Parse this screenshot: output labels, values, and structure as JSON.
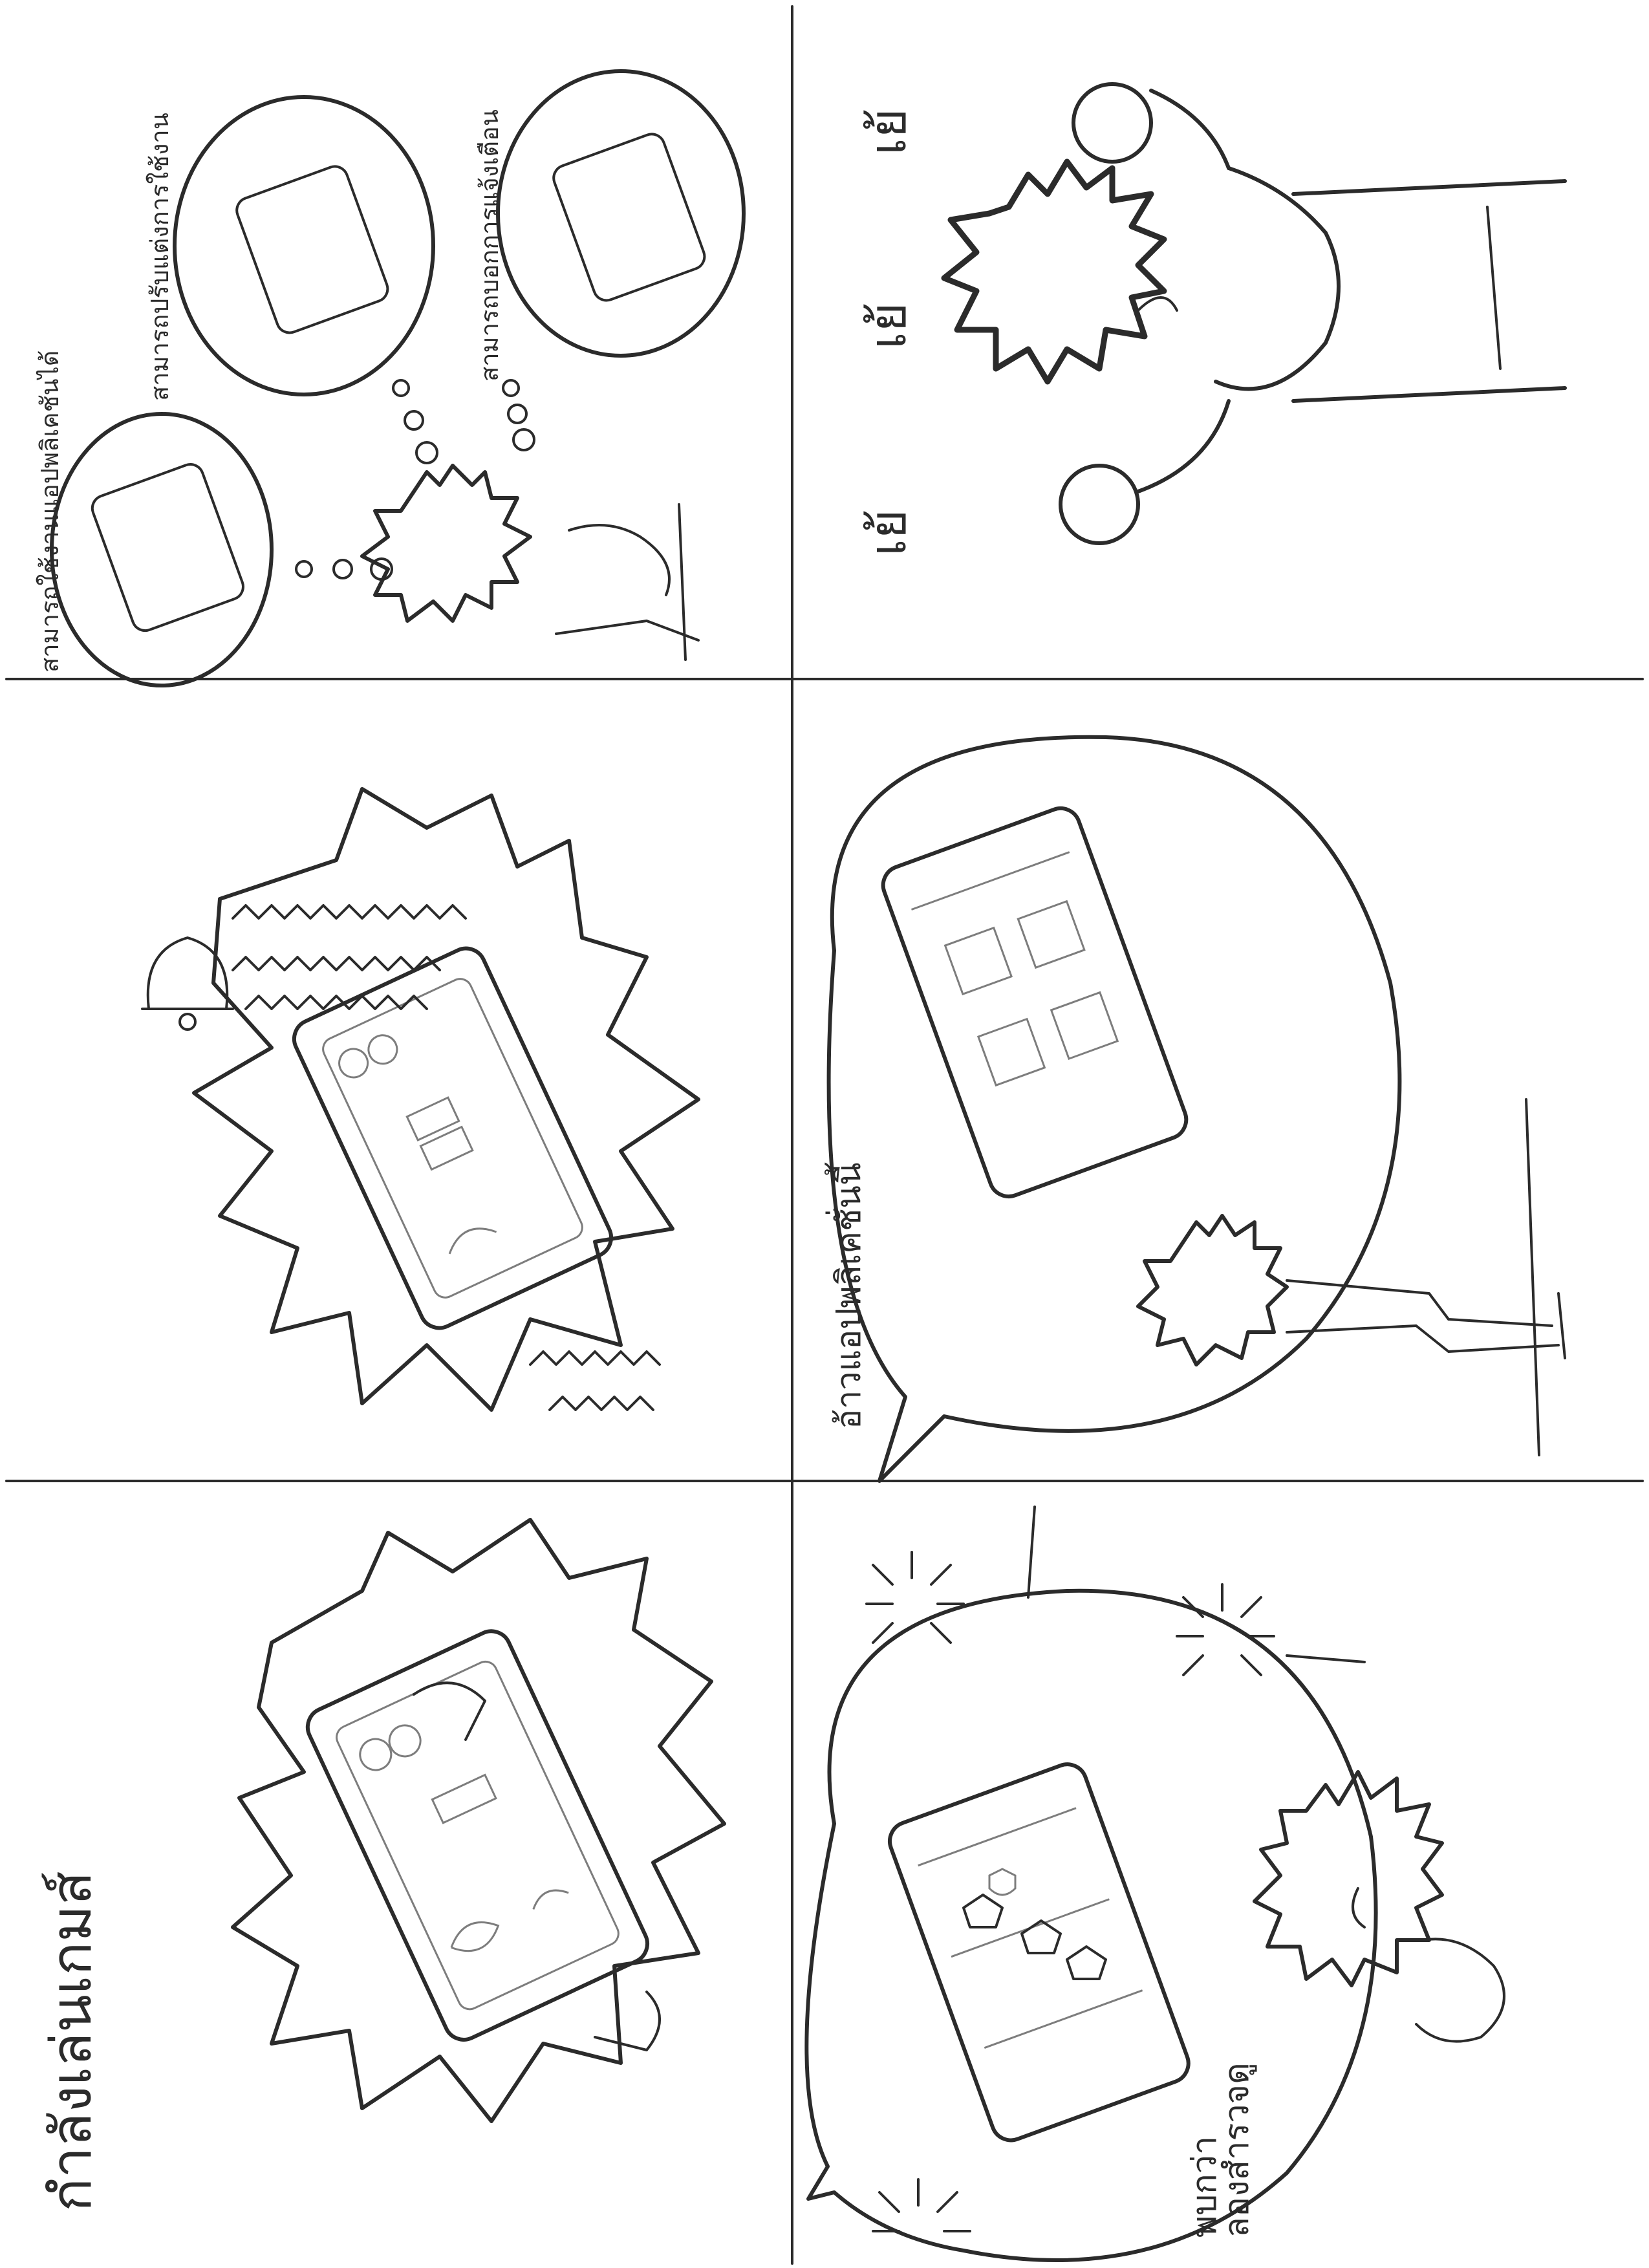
{
  "storyboard": {
    "title": "กำลังเล่นเกมส์",
    "panels": {
      "p1": {
        "caption": ""
      },
      "p2": {
        "caption": ""
      },
      "p3": {
        "caption_lines": [
          "ลองสำรวจดู",
          "พบกว่า"
        ]
      },
      "p4": {
        "caption": "อ้าวแอปพลิเคชั่นนี้"
      },
      "p5": {
        "thought_1": "สามารถใช้งานแอปพลิเคชันได้",
        "thought_2": "สามารถปรับแต่งการใช้งาน",
        "thought_3": "สามารถบอกการแจ้งเตือน"
      },
      "p6": {
        "exclamation": [
          "เย้",
          "เย้",
          "เย้"
        ]
      }
    }
  },
  "icons": [
    "bell-icon",
    "trophy-icon",
    "shield-icon"
  ],
  "colors": {
    "ink": "#2b2b2b",
    "paper": "#ffffff",
    "pencil": "#7d7d7d"
  }
}
